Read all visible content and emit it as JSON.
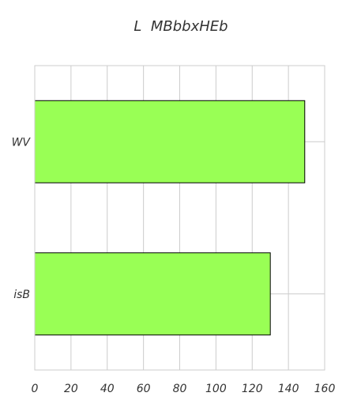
{
  "chart_data": {
    "type": "bar",
    "orientation": "horizontal",
    "title": "L  MBbbxHEb",
    "xlabel": "",
    "ylabel": "",
    "categories": [
      "WV",
      "isB"
    ],
    "values": [
      149,
      130
    ],
    "xlim": [
      0,
      160
    ],
    "xticks": [
      0,
      20,
      40,
      60,
      80,
      100,
      120,
      140,
      160
    ],
    "grid": true,
    "bar_color": "#99ff55",
    "bar_edge_color": "#000000",
    "grid_color": "#cccccc"
  }
}
